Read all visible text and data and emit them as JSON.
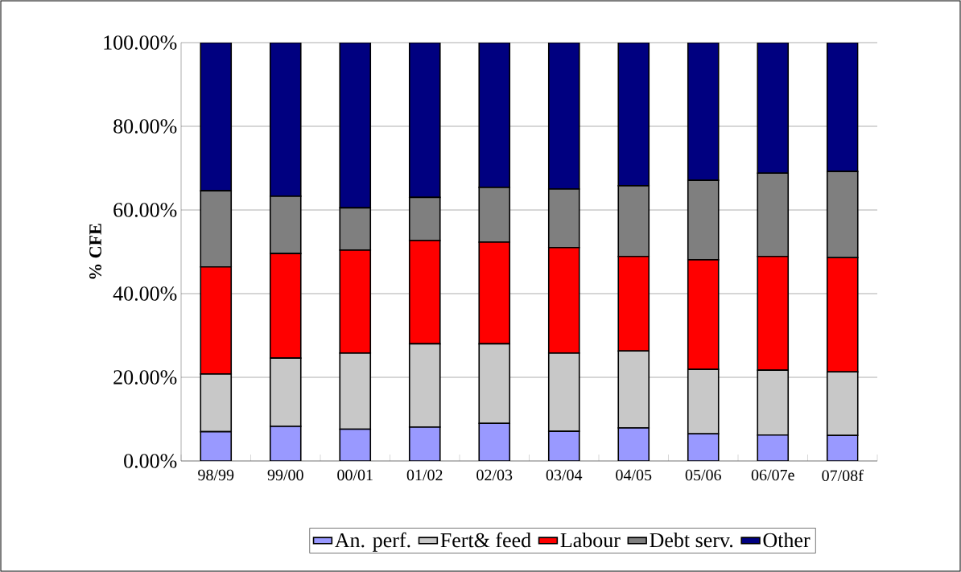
{
  "chart_data": {
    "type": "bar",
    "stacked": true,
    "ylabel": "% CFE",
    "categories": [
      "98/99",
      "99/00",
      "00/01",
      "01/02",
      "02/03",
      "03/04",
      "04/05",
      "05/06",
      "06/07e",
      "07/08f"
    ],
    "series": [
      {
        "name": "An. perf.",
        "color": "#9999ff",
        "values": [
          7.0,
          8.3,
          7.6,
          8.1,
          9.0,
          7.1,
          7.9,
          6.5,
          6.2,
          6.1
        ]
      },
      {
        "name": "Fert& feed",
        "color": "#c8c8c8",
        "values": [
          13.8,
          16.3,
          18.2,
          19.9,
          19.0,
          18.7,
          18.4,
          15.4,
          15.5,
          15.2
        ]
      },
      {
        "name": "Labour",
        "color": "#ff0000",
        "values": [
          25.6,
          25.0,
          24.6,
          24.7,
          24.3,
          25.2,
          22.6,
          26.2,
          27.2,
          27.3
        ]
      },
      {
        "name": "Debt serv.",
        "color": "#7f7f7f",
        "values": [
          18.2,
          13.7,
          10.1,
          10.3,
          13.1,
          14.0,
          16.9,
          19.0,
          19.9,
          20.6
        ]
      },
      {
        "name": "Other",
        "color": "#000080",
        "values": [
          35.4,
          36.7,
          39.5,
          37.0,
          34.6,
          35.0,
          34.2,
          32.9,
          31.2,
          30.8
        ]
      }
    ],
    "ylim": [
      0,
      100
    ],
    "yticks": [
      {
        "value": 0,
        "label": "0.00%"
      },
      {
        "value": 20,
        "label": "20.00%"
      },
      {
        "value": 40,
        "label": "40.00%"
      },
      {
        "value": 60,
        "label": "60.00%"
      },
      {
        "value": 80,
        "label": "80.00%"
      },
      {
        "value": 100,
        "label": "100.00%"
      }
    ],
    "grid": "y",
    "legend": "bottom"
  }
}
